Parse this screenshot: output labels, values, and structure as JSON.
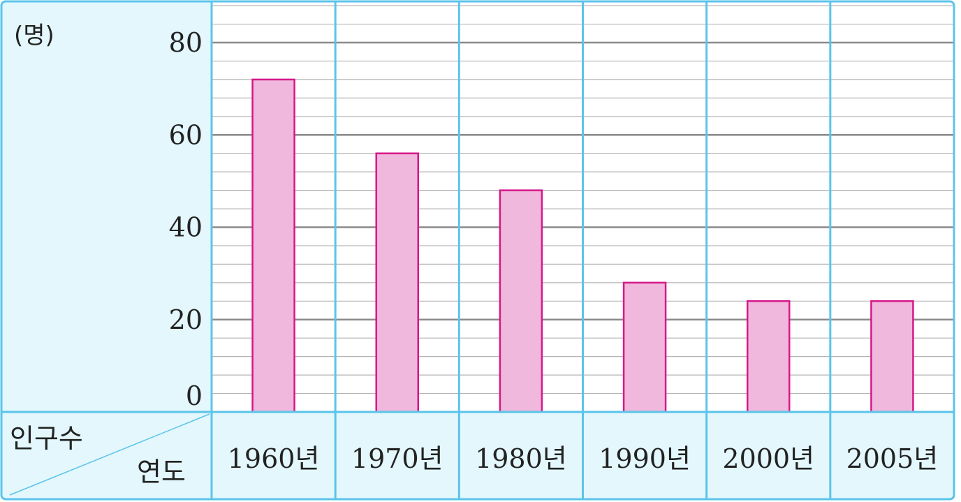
{
  "chart_data": {
    "type": "bar",
    "unit_label": "(명)",
    "row_header_top": "인구수",
    "row_header_bottom": "연도",
    "categories": [
      "1960년",
      "1970년",
      "1980년",
      "1990년",
      "2000년",
      "2005년"
    ],
    "values": [
      72,
      56,
      48,
      28,
      24,
      24
    ],
    "y_ticks": [
      "0",
      "20",
      "40",
      "60",
      "80"
    ],
    "ylim": [
      0,
      80
    ],
    "minor_step": 4,
    "grid": true
  },
  "colors": {
    "panel_bg": "#e3f7fc",
    "frame": "#5bc4ea",
    "major_grid": "#8a8a8a",
    "minor_grid": "#b4b4b4",
    "bar_fill": "#f0b8dc",
    "bar_stroke": "#d6188a"
  }
}
